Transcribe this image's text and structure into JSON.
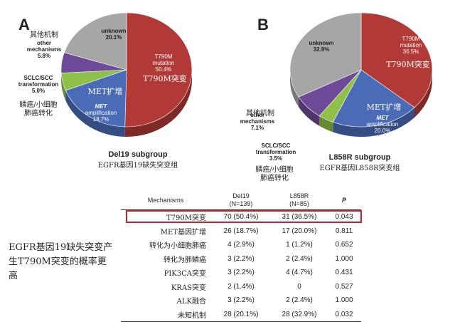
{
  "chart_data": [
    {
      "type": "pie",
      "panel": "A",
      "title": "Del19 subgroup",
      "subtitle": "EGFR基因19缺失突变组",
      "slices": [
        {
          "key": "t790m",
          "lines": [
            "T790M",
            "mutation",
            "50.4%"
          ],
          "cn": "T790M突变",
          "value": 50.4,
          "color": "#b23a36"
        },
        {
          "key": "met",
          "lines": [
            "amplification",
            "18.7%"
          ],
          "italic": "MET",
          "cn": "MET扩增",
          "value": 18.7,
          "color": "#4a6bb5"
        },
        {
          "key": "sclc",
          "lines": [
            "SCLC/SCC",
            "transformation",
            "5.0%"
          ],
          "cn": "鳞癌/小细胞肺癌转化",
          "value": 5.0,
          "color": "#8fc04a"
        },
        {
          "key": "other",
          "lines": [
            "other",
            "mechanisms",
            "5.8%"
          ],
          "cn": "其他机制",
          "value": 5.8,
          "color": "#6f4a98"
        },
        {
          "key": "unknown",
          "lines": [
            "unknown",
            "20.1%"
          ],
          "value": 20.1,
          "color": "#a6a6a6"
        }
      ]
    },
    {
      "type": "pie",
      "panel": "B",
      "title": "L858R subgroup",
      "subtitle": "EGFR基因L858R突变组",
      "slices": [
        {
          "key": "t790m",
          "lines": [
            "T790M",
            "mutation",
            "36.5%"
          ],
          "cn": "T790M突变",
          "value": 36.5,
          "color": "#b23a36"
        },
        {
          "key": "met",
          "lines": [
            "amplification",
            "20.0%"
          ],
          "italic": "MET",
          "cn": "MET扩增",
          "value": 20.0,
          "color": "#4a6bb5"
        },
        {
          "key": "sclc",
          "lines": [
            "SCLC/SCC",
            "transformation",
            "3.5%"
          ],
          "cn": "鳞癌/小细胞肺癌转化",
          "value": 3.5,
          "color": "#8fc04a"
        },
        {
          "key": "other",
          "lines": [
            "other",
            "mechanisms",
            "7.1%"
          ],
          "cn": "其他机制",
          "value": 7.1,
          "color": "#6f4a98"
        },
        {
          "key": "unknown",
          "lines": [
            "unknown",
            "32.9%"
          ],
          "value": 32.9,
          "color": "#a6a6a6"
        }
      ]
    },
    {
      "type": "table",
      "columns": [
        "Mechanisms",
        "Del19",
        "L858R",
        "P"
      ],
      "column_sub": [
        "",
        "(N=139)",
        "(N=85)",
        ""
      ],
      "rows": [
        {
          "name": "T790M突变",
          "del19": "70 (50.4%)",
          "l858r": "31 (36.5%)",
          "p": "0.043",
          "highlight": true
        },
        {
          "name": "MET基因扩增",
          "del19": "26 (18.7%)",
          "l858r": "17 (20.0%)",
          "p": "0.811"
        },
        {
          "name": "转化为小细胞肺癌",
          "del19": "4 (2.9%)",
          "l858r": "1 (1.2%)",
          "p": "0.652"
        },
        {
          "name": "转化为肺鳞癌",
          "del19": "3 (2.2%)",
          "l858r": "2 (2.4%)",
          "p": "1.000"
        },
        {
          "name": "PIK3CA突变",
          "del19": "3 (2.2%)",
          "l858r": "4 (4.7%)",
          "p": "0.431"
        },
        {
          "name": "KRAS突变",
          "del19": "2 (1.4%)",
          "l858r": "0",
          "p": "0.527"
        },
        {
          "name": "ALK融合",
          "del19": "3 (2.2%)",
          "l858r": "2 (2.4%)",
          "p": "1.000"
        },
        {
          "name": "未知机制",
          "del19": "28 (20.1%)",
          "l858r": "28 (32.9%)",
          "p": "0.032"
        }
      ]
    }
  ],
  "side_note": "EGFR基因19缺失突变产生T790M突变的概率更高"
}
